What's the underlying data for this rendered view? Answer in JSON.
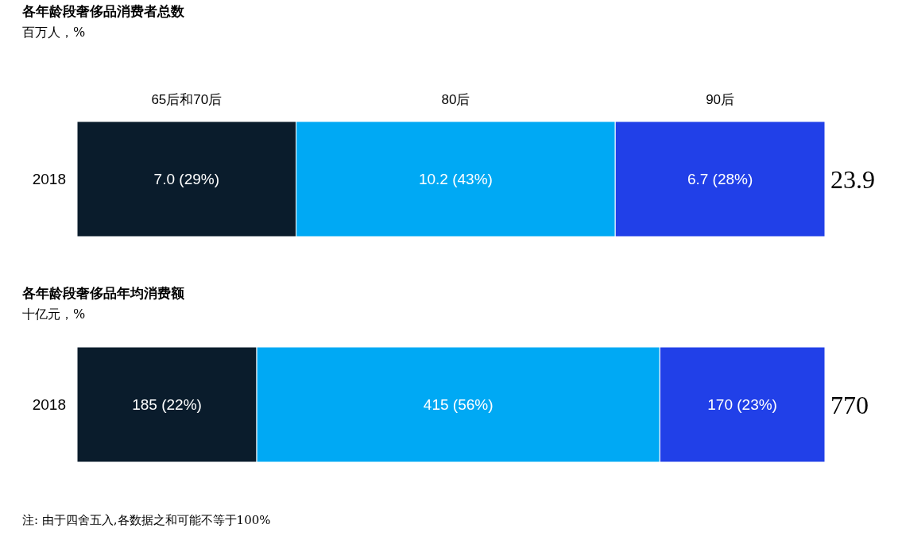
{
  "chart_data": [
    {
      "type": "bar",
      "orientation": "horizontal",
      "stacked": true,
      "title": "各年龄段奢侈品消费者总数",
      "subtitle": "百万人，%",
      "categories": [
        "2018"
      ],
      "xlim": [
        0,
        23.9
      ],
      "tick_labels": "y",
      "legend": "top",
      "totals": [
        "23.9"
      ],
      "series": [
        {
          "name": "65后和70后",
          "color": "#0a1c2c",
          "values": [
            7.0
          ],
          "value_labels": [
            "7.0 (29%)"
          ]
        },
        {
          "name": "80后",
          "color": "#00a9f4",
          "values": [
            10.2
          ],
          "value_labels": [
            "10.2 (43%)"
          ]
        },
        {
          "name": "90后",
          "color": "#2140e8",
          "values": [
            6.7
          ],
          "value_labels": [
            "6.7 (28%)"
          ]
        }
      ]
    },
    {
      "type": "bar",
      "orientation": "horizontal",
      "stacked": true,
      "title": "各年龄段奢侈品年均消费额",
      "subtitle": "十亿元，%",
      "categories": [
        "2018"
      ],
      "xlim": [
        0,
        770
      ],
      "tick_labels": "y",
      "totals": [
        "770"
      ],
      "annotations": [
        "注: 由于四舍五入,各数据之和可能不等于100%"
      ],
      "series": [
        {
          "color": "#0a1c2c",
          "values": [
            185
          ],
          "value_labels": [
            "185 (22%)"
          ]
        },
        {
          "color": "#00a9f4",
          "values": [
            415
          ],
          "value_labels": [
            "415 (56%)"
          ]
        },
        {
          "color": "#2140e8",
          "values": [
            170
          ],
          "value_labels": [
            "170 (23%)"
          ]
        }
      ]
    }
  ]
}
